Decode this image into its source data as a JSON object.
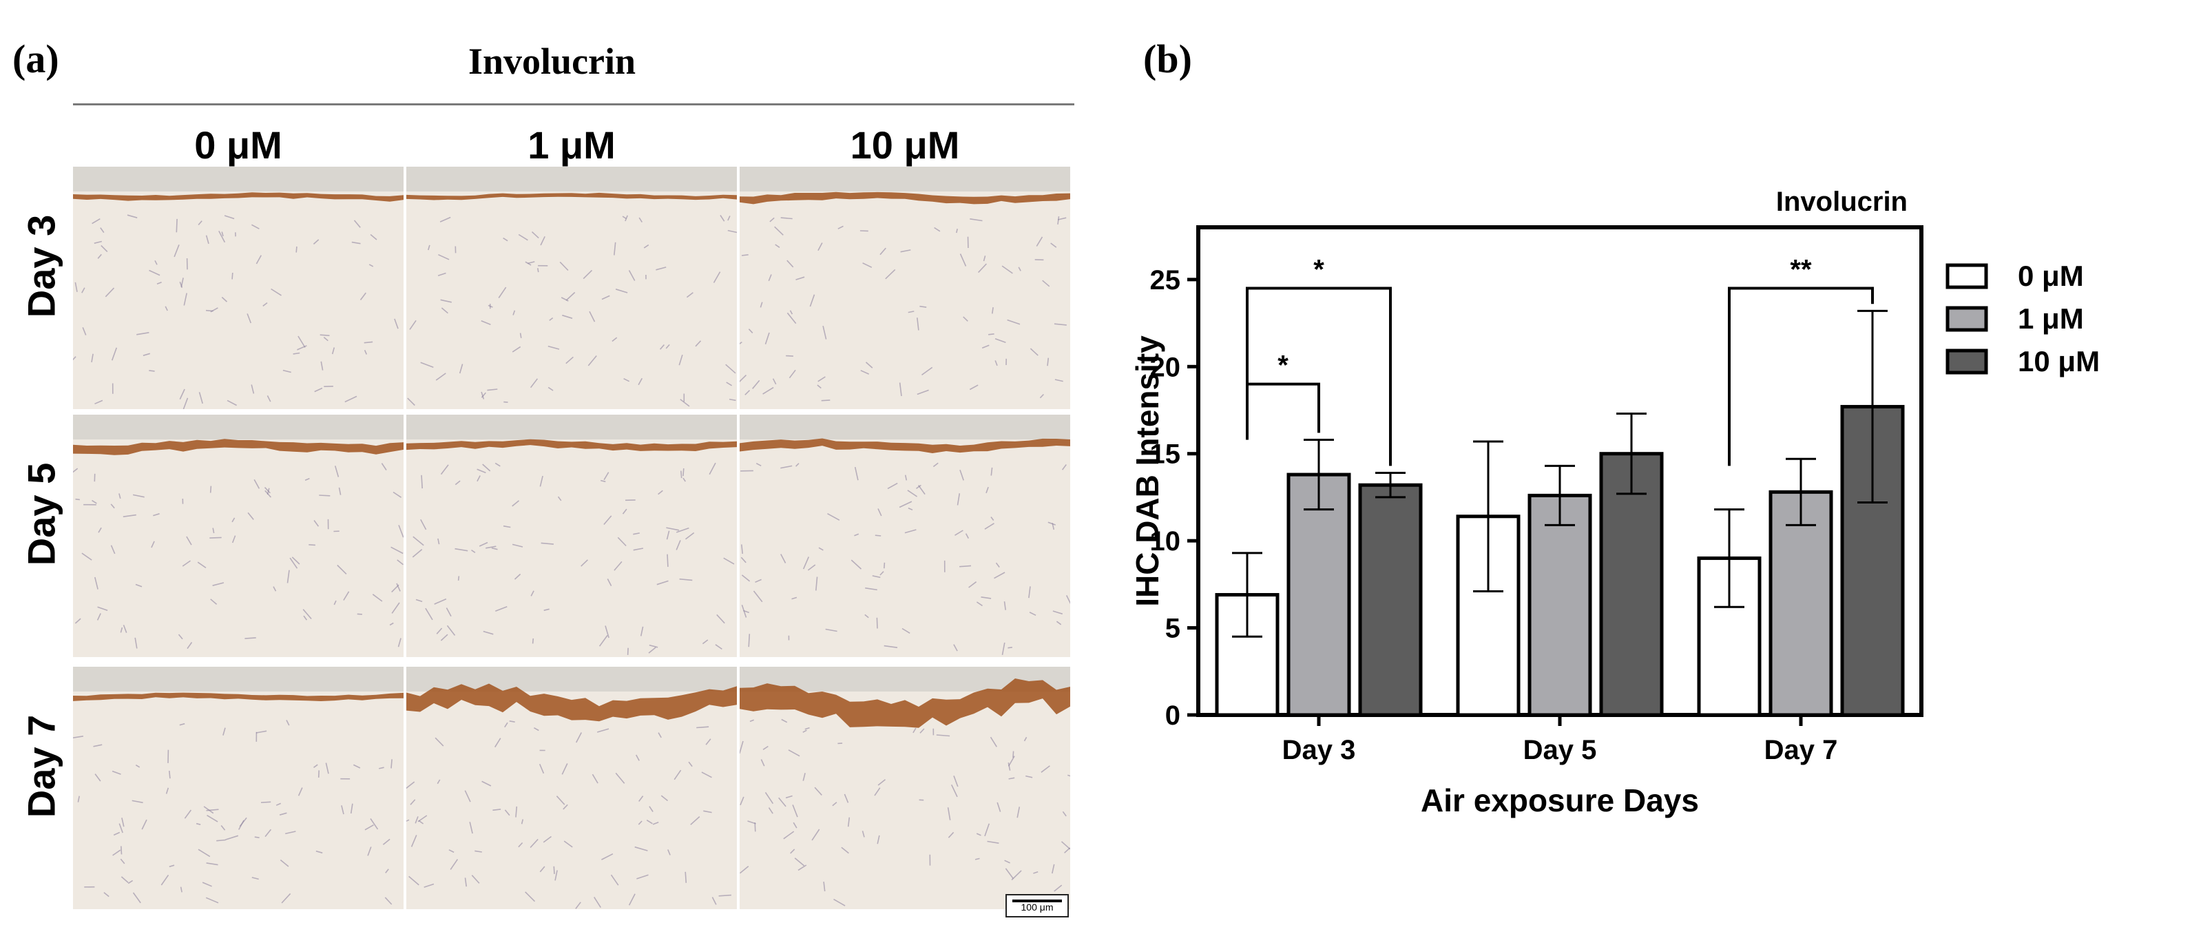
{
  "figure": {
    "panel_a_letter": "(a)",
    "panel_b_letter": "(b)",
    "panel_a_title": "Involucrin",
    "column_headers": [
      "0 μM",
      "1 μM",
      "10 μM"
    ],
    "row_headers": [
      "Day 3",
      "Day 5",
      "Day 7"
    ],
    "scale_bar_label": "100 μm"
  },
  "colors": {
    "tissue_background": "#efe9e1",
    "dab_brown": "#a0521d",
    "bar_0uM": "#ffffff",
    "bar_1uM": "#a9a9ad",
    "bar_10uM": "#5d5d5d"
  },
  "chart_data": {
    "type": "bar",
    "title": "Involucrin",
    "xlabel": "Air exposure Days",
    "ylabel": "IHC DAB Intensity",
    "categories": [
      "Day 3",
      "Day 5",
      "Day 7"
    ],
    "ylim": [
      0,
      28
    ],
    "yticks": [
      0,
      5,
      10,
      15,
      20,
      25
    ],
    "grid": false,
    "legend_position": "right",
    "series": [
      {
        "name": "0 μM",
        "values": [
          6.9,
          11.4,
          9.0
        ],
        "errors": [
          2.4,
          4.3,
          2.8
        ]
      },
      {
        "name": "1 μM",
        "values": [
          13.8,
          12.6,
          12.8
        ],
        "errors": [
          2.0,
          1.7,
          1.9
        ]
      },
      {
        "name": "10 μM",
        "values": [
          13.2,
          15.0,
          17.7
        ],
        "errors": [
          0.7,
          2.3,
          5.5
        ]
      }
    ],
    "significance": [
      {
        "category": "Day 3",
        "from_series": 0,
        "to_series": 2,
        "label": "*"
      },
      {
        "category": "Day 3",
        "from_series": 0,
        "to_series": 1,
        "label": "*"
      },
      {
        "category": "Day 7",
        "from_series": 0,
        "to_series": 2,
        "label": "**"
      }
    ]
  }
}
